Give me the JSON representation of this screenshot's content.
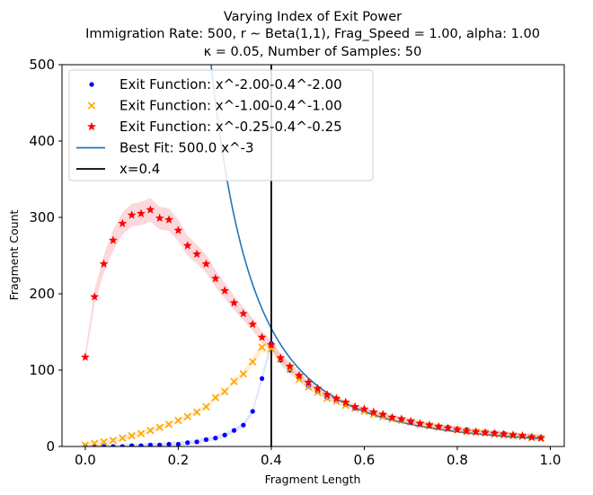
{
  "chart_data": {
    "type": "scatter",
    "title_lines": [
      "Varying Index of Exit Power",
      "Immigration Rate: 500, r ∼ Beta(1,1), Frag_Speed = 1.00, alpha:  1.00",
      "κ =  0.05, Number of Samples: 50"
    ],
    "xlabel": "Fragment Length",
    "ylabel": "Fragment Count",
    "xlim": [
      -0.05,
      1.03
    ],
    "ylim": [
      0,
      500
    ],
    "xticks": [
      0.0,
      0.2,
      0.4,
      0.6,
      0.8,
      1.0
    ],
    "xtick_labels": [
      "0.0",
      "0.2",
      "0.4",
      "0.6",
      "0.8",
      "1.0"
    ],
    "yticks": [
      0,
      100,
      200,
      300,
      400,
      500
    ],
    "ytick_labels": [
      "0",
      "100",
      "200",
      "300",
      "400",
      "500"
    ],
    "grid": false,
    "legend_position": "upper-left",
    "x": [
      0.0,
      0.02,
      0.04,
      0.06,
      0.08,
      0.1,
      0.12,
      0.14,
      0.16,
      0.18,
      0.2,
      0.22,
      0.24,
      0.26,
      0.28,
      0.3,
      0.32,
      0.34,
      0.36,
      0.38,
      0.4,
      0.42,
      0.44,
      0.46,
      0.48,
      0.5,
      0.52,
      0.54,
      0.56,
      0.58,
      0.6,
      0.62,
      0.64,
      0.66,
      0.68,
      0.7,
      0.72,
      0.74,
      0.76,
      0.78,
      0.8,
      0.82,
      0.84,
      0.86,
      0.88,
      0.9,
      0.92,
      0.94,
      0.96,
      0.98
    ],
    "series": [
      {
        "name": "Exit Function: x^-2.00-0.4^-2.00",
        "marker": "dot",
        "color": "#0000ff",
        "band_color": "#c8c8ff",
        "values": [
          0,
          0,
          0,
          0,
          0,
          1,
          1,
          2,
          2,
          3,
          3,
          5,
          6,
          9,
          11,
          15,
          21,
          28,
          46,
          89,
          135,
          113,
          100,
          90,
          79,
          72,
          64,
          60,
          55,
          50,
          47,
          43,
          40,
          38,
          35,
          32,
          30,
          28,
          26,
          25,
          23,
          22,
          20,
          19,
          18,
          17,
          15,
          14,
          13,
          12
        ]
      },
      {
        "name": "Exit Function: x^-1.00-0.4^-1.00",
        "marker": "x",
        "color": "#ffa500",
        "band_color": "#ffe0b0",
        "values": [
          2,
          4,
          6,
          8,
          11,
          14,
          17,
          21,
          25,
          29,
          34,
          39,
          45,
          52,
          64,
          72,
          85,
          95,
          111,
          130,
          128,
          114,
          101,
          88,
          78,
          71,
          63,
          59,
          54,
          50,
          46,
          42,
          39,
          36,
          34,
          32,
          29,
          27,
          25,
          23,
          22,
          20,
          19,
          18,
          16,
          15,
          14,
          13,
          12,
          11
        ]
      },
      {
        "name": "Exit Function: x^-0.25-0.4^-0.25",
        "marker": "star",
        "color": "#ff0000",
        "band_color": "#f7b8c0",
        "values": [
          117,
          196,
          239,
          270,
          292,
          303,
          305,
          310,
          299,
          297,
          283,
          263,
          252,
          239,
          220,
          204,
          188,
          174,
          160,
          143,
          133,
          116,
          105,
          93,
          84,
          76,
          68,
          63,
          58,
          52,
          49,
          45,
          42,
          38,
          36,
          33,
          30,
          28,
          26,
          24,
          22,
          20,
          19,
          18,
          17,
          16,
          15,
          14,
          12,
          11
        ]
      },
      {
        "name": "Best Fit: 500.0 x^-3",
        "marker": "line",
        "color": "#1f77b4"
      },
      {
        "name": "x=0.4",
        "marker": "vline",
        "color": "#000000",
        "x_position": 0.4
      }
    ]
  }
}
